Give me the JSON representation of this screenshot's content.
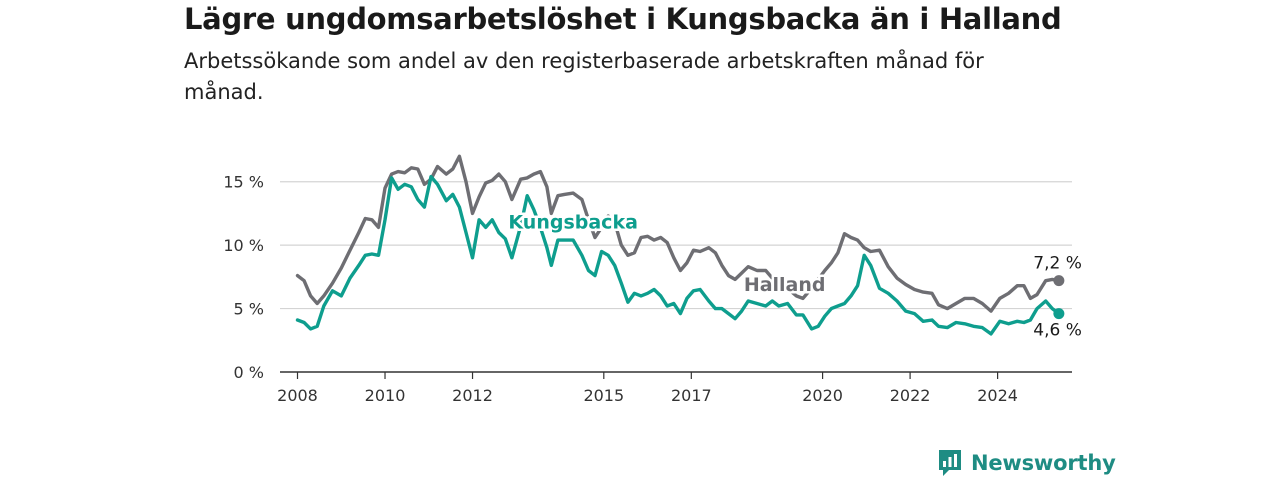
{
  "title": "Lägre ungdomsarbetslöshet i Kungsbacka än i Halland",
  "subtitle": "Arbetssökande som andel av den registerbaserade arbetskraften månad för månad.",
  "brand": "Newsworthy",
  "colors": {
    "kungsbacka": "#0e9e8e",
    "halland": "#6e6e73",
    "grid": "#d4d4d4",
    "axis": "#333333"
  },
  "chart_data": {
    "type": "line",
    "x_unit": "year (decimal)",
    "y_unit": "%",
    "ylim": [
      0,
      17.5
    ],
    "xlim": [
      2007.6,
      2025.7
    ],
    "y_ticks": [
      0,
      5,
      10,
      15
    ],
    "y_tick_labels": [
      "0 %",
      "5 %",
      "10 %",
      "15 %"
    ],
    "x_ticks": [
      2008,
      2010,
      2012,
      2015,
      2017,
      2020,
      2022,
      2024
    ],
    "x_tick_labels": [
      "2008",
      "2010",
      "2012",
      "2015",
      "2017",
      "2020",
      "2022",
      "2024"
    ],
    "grid": true,
    "series": [
      {
        "name": "Halland",
        "color_key": "halland",
        "end_label": "7,2 %",
        "points": [
          [
            2008.0,
            7.6
          ],
          [
            2008.15,
            7.2
          ],
          [
            2008.3,
            6.0
          ],
          [
            2008.45,
            5.4
          ],
          [
            2008.6,
            6.0
          ],
          [
            2008.8,
            7.0
          ],
          [
            2009.0,
            8.2
          ],
          [
            2009.2,
            9.6
          ],
          [
            2009.4,
            11.0
          ],
          [
            2009.55,
            12.1
          ],
          [
            2009.7,
            12.0
          ],
          [
            2009.85,
            11.4
          ],
          [
            2010.0,
            14.5
          ],
          [
            2010.15,
            15.6
          ],
          [
            2010.3,
            15.8
          ],
          [
            2010.45,
            15.7
          ],
          [
            2010.6,
            16.1
          ],
          [
            2010.75,
            16.0
          ],
          [
            2010.9,
            14.8
          ],
          [
            2011.05,
            15.2
          ],
          [
            2011.2,
            16.2
          ],
          [
            2011.4,
            15.6
          ],
          [
            2011.55,
            16.0
          ],
          [
            2011.7,
            17.0
          ],
          [
            2011.85,
            15.0
          ],
          [
            2012.0,
            12.5
          ],
          [
            2012.15,
            13.8
          ],
          [
            2012.3,
            14.9
          ],
          [
            2012.45,
            15.1
          ],
          [
            2012.6,
            15.6
          ],
          [
            2012.75,
            15.0
          ],
          [
            2012.9,
            13.6
          ],
          [
            2013.1,
            15.2
          ],
          [
            2013.25,
            15.3
          ],
          [
            2013.4,
            15.6
          ],
          [
            2013.55,
            15.8
          ],
          [
            2013.7,
            14.6
          ],
          [
            2013.8,
            12.5
          ],
          [
            2013.95,
            13.9
          ],
          [
            2014.1,
            14.0
          ],
          [
            2014.3,
            14.1
          ],
          [
            2014.5,
            13.6
          ],
          [
            2014.65,
            12.0
          ],
          [
            2014.8,
            10.6
          ],
          [
            2014.95,
            11.4
          ],
          [
            2015.1,
            12.3
          ],
          [
            2015.25,
            11.8
          ],
          [
            2015.4,
            10.0
          ],
          [
            2015.55,
            9.2
          ],
          [
            2015.7,
            9.4
          ],
          [
            2015.85,
            10.6
          ],
          [
            2016.0,
            10.7
          ],
          [
            2016.15,
            10.4
          ],
          [
            2016.3,
            10.6
          ],
          [
            2016.45,
            10.2
          ],
          [
            2016.6,
            9.0
          ],
          [
            2016.75,
            8.0
          ],
          [
            2016.9,
            8.6
          ],
          [
            2017.05,
            9.6
          ],
          [
            2017.2,
            9.5
          ],
          [
            2017.4,
            9.8
          ],
          [
            2017.55,
            9.4
          ],
          [
            2017.7,
            8.4
          ],
          [
            2017.85,
            7.6
          ],
          [
            2018.0,
            7.3
          ],
          [
            2018.15,
            7.8
          ],
          [
            2018.3,
            8.3
          ],
          [
            2018.5,
            8.0
          ],
          [
            2018.7,
            8.0
          ],
          [
            2018.85,
            7.4
          ],
          [
            2019.0,
            6.8
          ],
          [
            2019.2,
            6.6
          ],
          [
            2019.4,
            6.0
          ],
          [
            2019.55,
            5.8
          ],
          [
            2019.75,
            6.6
          ],
          [
            2019.9,
            7.3
          ],
          [
            2020.05,
            8.0
          ],
          [
            2020.2,
            8.6
          ],
          [
            2020.35,
            9.4
          ],
          [
            2020.5,
            10.9
          ],
          [
            2020.65,
            10.6
          ],
          [
            2020.8,
            10.4
          ],
          [
            2020.95,
            9.8
          ],
          [
            2021.1,
            9.5
          ],
          [
            2021.3,
            9.6
          ],
          [
            2021.5,
            8.3
          ],
          [
            2021.7,
            7.4
          ],
          [
            2021.9,
            6.9
          ],
          [
            2022.1,
            6.5
          ],
          [
            2022.3,
            6.3
          ],
          [
            2022.5,
            6.2
          ],
          [
            2022.65,
            5.3
          ],
          [
            2022.85,
            5.0
          ],
          [
            2023.05,
            5.4
          ],
          [
            2023.25,
            5.8
          ],
          [
            2023.45,
            5.8
          ],
          [
            2023.65,
            5.4
          ],
          [
            2023.85,
            4.8
          ],
          [
            2024.05,
            5.8
          ],
          [
            2024.25,
            6.2
          ],
          [
            2024.45,
            6.8
          ],
          [
            2024.6,
            6.8
          ],
          [
            2024.75,
            5.8
          ],
          [
            2024.9,
            6.1
          ],
          [
            2025.1,
            7.2
          ],
          [
            2025.25,
            7.3
          ],
          [
            2025.4,
            7.2
          ]
        ]
      },
      {
        "name": "Kungsbacka",
        "color_key": "kungsbacka",
        "end_label": "4,6 %",
        "points": [
          [
            2008.0,
            4.1
          ],
          [
            2008.15,
            3.9
          ],
          [
            2008.3,
            3.4
          ],
          [
            2008.45,
            3.6
          ],
          [
            2008.6,
            5.2
          ],
          [
            2008.8,
            6.4
          ],
          [
            2009.0,
            6.0
          ],
          [
            2009.2,
            7.4
          ],
          [
            2009.4,
            8.4
          ],
          [
            2009.55,
            9.2
          ],
          [
            2009.7,
            9.3
          ],
          [
            2009.85,
            9.2
          ],
          [
            2010.0,
            12.0
          ],
          [
            2010.15,
            15.3
          ],
          [
            2010.3,
            14.4
          ],
          [
            2010.45,
            14.8
          ],
          [
            2010.6,
            14.6
          ],
          [
            2010.75,
            13.6
          ],
          [
            2010.9,
            13.0
          ],
          [
            2011.05,
            15.4
          ],
          [
            2011.2,
            14.8
          ],
          [
            2011.4,
            13.5
          ],
          [
            2011.55,
            14.0
          ],
          [
            2011.7,
            13.0
          ],
          [
            2011.85,
            11.0
          ],
          [
            2012.0,
            9.0
          ],
          [
            2012.15,
            12.0
          ],
          [
            2012.3,
            11.4
          ],
          [
            2012.45,
            12.0
          ],
          [
            2012.6,
            11.0
          ],
          [
            2012.75,
            10.5
          ],
          [
            2012.9,
            9.0
          ],
          [
            2013.1,
            11.5
          ],
          [
            2013.25,
            13.9
          ],
          [
            2013.4,
            12.8
          ],
          [
            2013.55,
            11.4
          ],
          [
            2013.7,
            9.8
          ],
          [
            2013.8,
            8.4
          ],
          [
            2013.95,
            10.4
          ],
          [
            2014.1,
            10.4
          ],
          [
            2014.3,
            10.4
          ],
          [
            2014.5,
            9.2
          ],
          [
            2014.65,
            8.0
          ],
          [
            2014.8,
            7.6
          ],
          [
            2014.95,
            9.5
          ],
          [
            2015.1,
            9.2
          ],
          [
            2015.25,
            8.4
          ],
          [
            2015.4,
            7.0
          ],
          [
            2015.55,
            5.5
          ],
          [
            2015.7,
            6.2
          ],
          [
            2015.85,
            6.0
          ],
          [
            2016.0,
            6.2
          ],
          [
            2016.15,
            6.5
          ],
          [
            2016.3,
            6.0
          ],
          [
            2016.45,
            5.2
          ],
          [
            2016.6,
            5.4
          ],
          [
            2016.75,
            4.6
          ],
          [
            2016.9,
            5.8
          ],
          [
            2017.05,
            6.4
          ],
          [
            2017.2,
            6.5
          ],
          [
            2017.4,
            5.6
          ],
          [
            2017.55,
            5.0
          ],
          [
            2017.7,
            5.0
          ],
          [
            2017.85,
            4.6
          ],
          [
            2018.0,
            4.2
          ],
          [
            2018.15,
            4.8
          ],
          [
            2018.3,
            5.6
          ],
          [
            2018.5,
            5.4
          ],
          [
            2018.7,
            5.2
          ],
          [
            2018.85,
            5.6
          ],
          [
            2019.0,
            5.2
          ],
          [
            2019.2,
            5.4
          ],
          [
            2019.4,
            4.5
          ],
          [
            2019.55,
            4.5
          ],
          [
            2019.75,
            3.4
          ],
          [
            2019.9,
            3.6
          ],
          [
            2020.05,
            4.4
          ],
          [
            2020.2,
            5.0
          ],
          [
            2020.35,
            5.2
          ],
          [
            2020.5,
            5.4
          ],
          [
            2020.65,
            6.0
          ],
          [
            2020.8,
            6.8
          ],
          [
            2020.95,
            9.2
          ],
          [
            2021.1,
            8.4
          ],
          [
            2021.3,
            6.6
          ],
          [
            2021.5,
            6.2
          ],
          [
            2021.7,
            5.6
          ],
          [
            2021.9,
            4.8
          ],
          [
            2022.1,
            4.6
          ],
          [
            2022.3,
            4.0
          ],
          [
            2022.5,
            4.1
          ],
          [
            2022.65,
            3.6
          ],
          [
            2022.85,
            3.5
          ],
          [
            2023.05,
            3.9
          ],
          [
            2023.25,
            3.8
          ],
          [
            2023.45,
            3.6
          ],
          [
            2023.65,
            3.5
          ],
          [
            2023.85,
            3.0
          ],
          [
            2024.05,
            4.0
          ],
          [
            2024.25,
            3.8
          ],
          [
            2024.45,
            4.0
          ],
          [
            2024.6,
            3.9
          ],
          [
            2024.75,
            4.1
          ],
          [
            2024.9,
            5.0
          ],
          [
            2025.1,
            5.6
          ],
          [
            2025.25,
            5.0
          ],
          [
            2025.4,
            4.6
          ]
        ]
      }
    ],
    "annotations": [
      {
        "text": "Kungsbacka",
        "series": "Kungsbacka",
        "x": 2014.3,
        "y": 11.3,
        "anchor": "middle"
      },
      {
        "text": "Halland",
        "series": "Halland",
        "x": 2018.2,
        "y": 6.4,
        "anchor": "start"
      }
    ]
  }
}
